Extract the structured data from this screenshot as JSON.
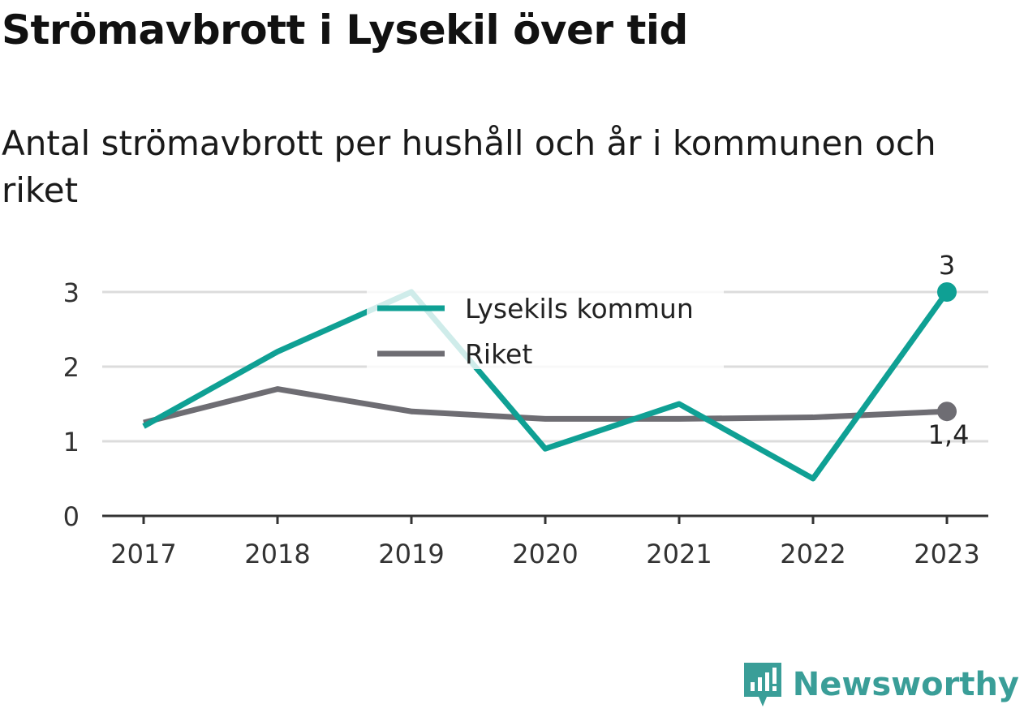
{
  "header": {
    "title": "Strömavbrott i Lysekil över tid",
    "subtitle": "Antal strömavbrott per hushåll och år i kommunen och riket"
  },
  "brand": {
    "name": "Newsworthy",
    "icon": "newsworthy-logo-icon",
    "color": "#3a9e98"
  },
  "chart_data": {
    "type": "line",
    "x": [
      "2017",
      "2018",
      "2019",
      "2020",
      "2021",
      "2022",
      "2023"
    ],
    "yticks": [
      "0",
      "1",
      "2",
      "3"
    ],
    "ylim": [
      0,
      3.2
    ],
    "grid": true,
    "legend_position": "top-center",
    "series": [
      {
        "name": "Lysekils kommun",
        "color": "#0fa094",
        "values": [
          1.2,
          2.2,
          3.0,
          0.9,
          1.5,
          0.5,
          3.0
        ],
        "end_label": "3"
      },
      {
        "name": "Riket",
        "color": "#6e6d73",
        "values": [
          1.25,
          1.7,
          1.4,
          1.3,
          1.3,
          1.32,
          1.4
        ],
        "end_label": "1,4"
      }
    ]
  }
}
